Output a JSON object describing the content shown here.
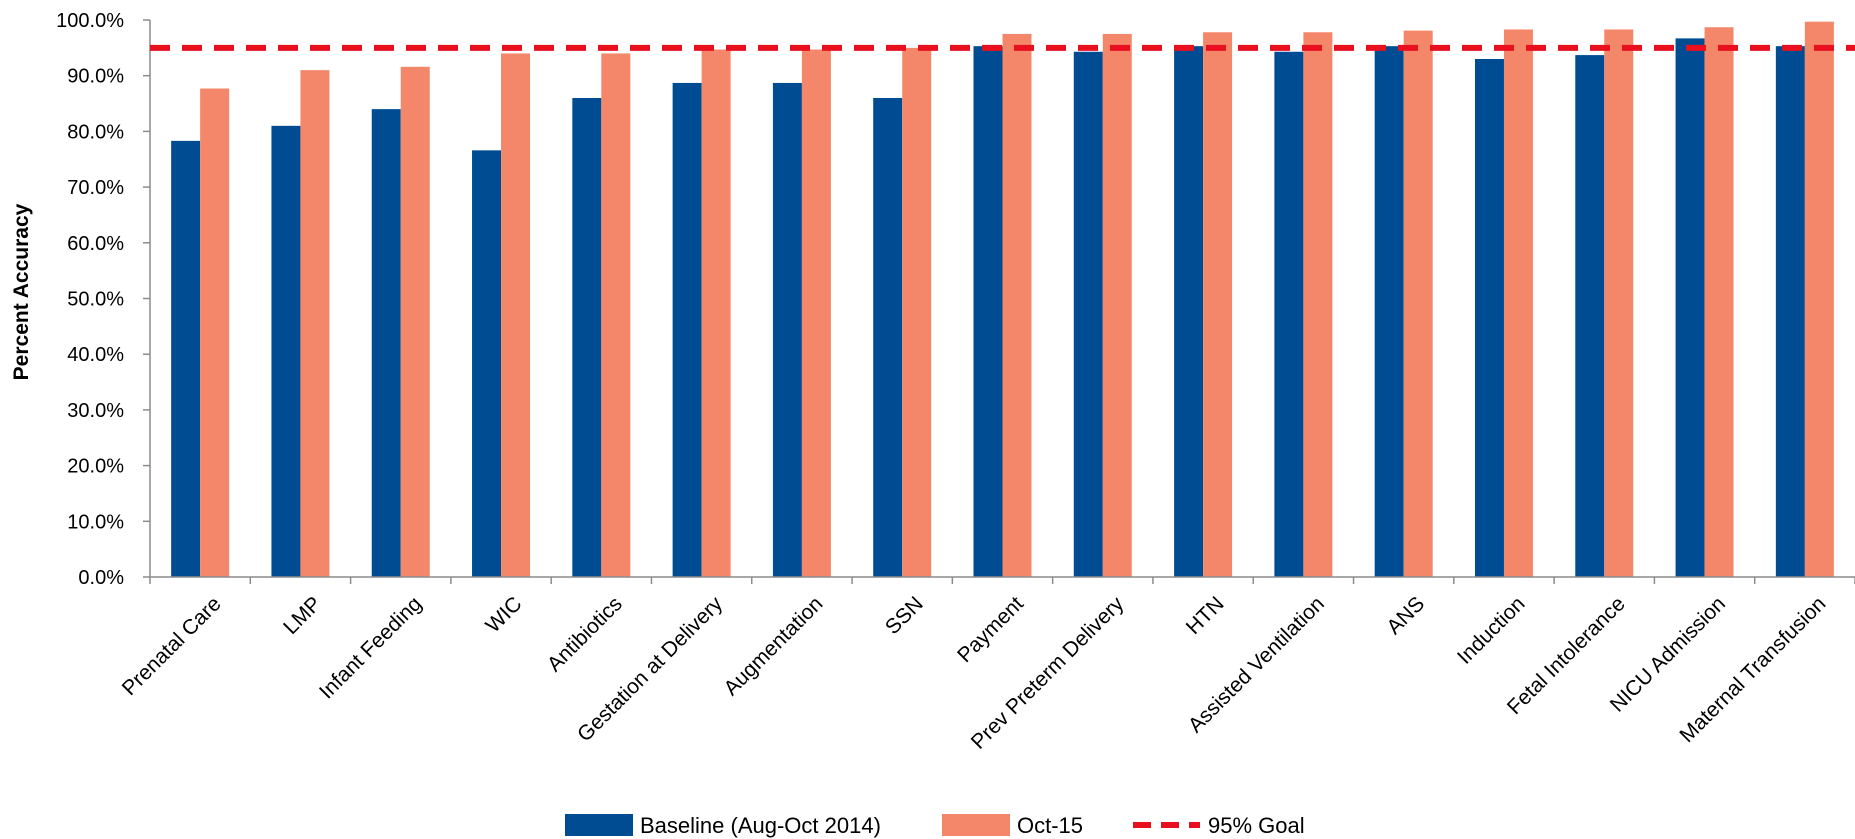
{
  "chart_data": {
    "type": "bar",
    "title": "",
    "xlabel": "",
    "ylabel": "Percent Accuracy",
    "ylim": [
      0,
      100
    ],
    "yticks": [
      "0.0%",
      "10.0%",
      "20.0%",
      "30.0%",
      "40.0%",
      "50.0%",
      "60.0%",
      "70.0%",
      "80.0%",
      "90.0%",
      "100.0%"
    ],
    "categories": [
      "Prenatal Care",
      "LMP",
      "Infant Feeding",
      "WIC",
      "Antibiotics",
      "Gestation at Delivery",
      "Augmentation",
      "SSN",
      "Payment",
      "Prev Preterm Delivery",
      "HTN",
      "Assisted Ventilation",
      "ANS",
      "Induction",
      "Fetal Intolerance",
      "NICU Admission",
      "Maternal Transfusion"
    ],
    "series": [
      {
        "name": "Baseline (Aug-Oct 2014)",
        "color": "#004C93",
        "values": [
          78.3,
          81.0,
          84.0,
          76.6,
          86.0,
          88.7,
          88.7,
          86.0,
          95.3,
          94.3,
          95.3,
          94.3,
          95.3,
          93.0,
          93.7,
          96.7,
          95.3
        ]
      },
      {
        "name": "Oct-15",
        "color": "#F4876A",
        "values": [
          87.7,
          91.0,
          91.6,
          94.0,
          94.0,
          94.7,
          94.7,
          95.0,
          97.5,
          97.5,
          97.8,
          97.8,
          98.1,
          98.3,
          98.3,
          98.7,
          99.7
        ]
      }
    ],
    "goal": {
      "name": "95% Goal",
      "value": 95,
      "color": "#E8101E"
    },
    "grid": false,
    "legend": "bottom"
  }
}
